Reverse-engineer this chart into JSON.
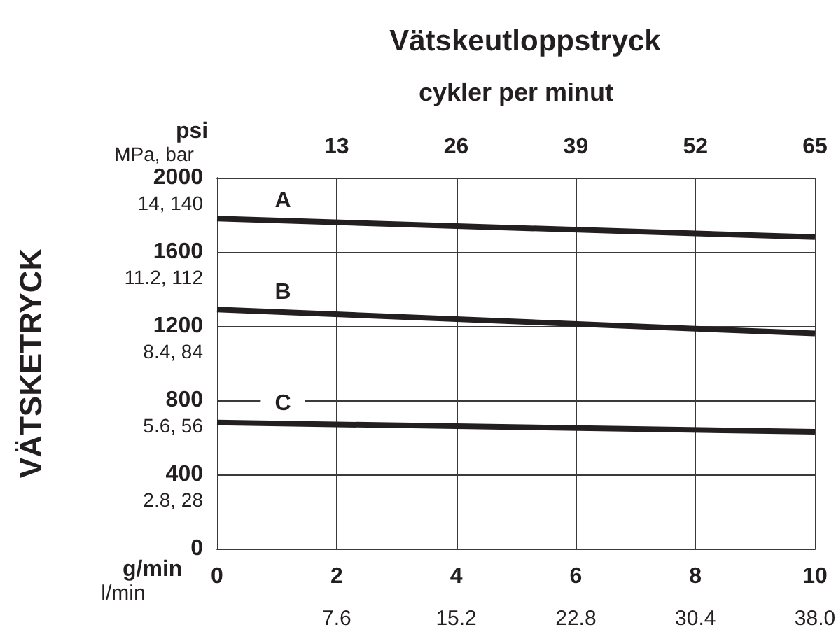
{
  "chart_data": {
    "type": "line",
    "title": "Vätskeutloppstryck",
    "xlabel": "g/min",
    "x2label": "cykler per minut",
    "ylabel": "VÄTSKETRYCK",
    "annotations": [
      "psi",
      "MPa, bar",
      "14, 140",
      "11.2, 112",
      "8.4, 84",
      "5.6, 56",
      "2.8, 28",
      "l/min",
      "7.6",
      "15.2",
      "22.8",
      "30.4",
      "38.0"
    ],
    "x": [
      0,
      10
    ],
    "series": [
      {
        "name": "A",
        "color": "#231f20",
        "values": [
          1780,
          1680
        ]
      },
      {
        "name": "B",
        "color": "#231f20",
        "values": [
          1290,
          1160
        ]
      },
      {
        "name": "C",
        "color": "#231f20",
        "values": [
          680,
          630
        ]
      }
    ],
    "xlim": [
      0,
      10
    ],
    "xticks": [
      0,
      2,
      4,
      6,
      8,
      10
    ],
    "x2lim": [
      0,
      65
    ],
    "x2ticks": [
      13,
      26,
      39,
      52,
      65
    ],
    "ylim": [
      0,
      2000
    ],
    "yticks": [
      0,
      400,
      800,
      1200,
      1600,
      2000
    ],
    "grid": true,
    "legend": false,
    "marker": "none",
    "line_style": "solid"
  }
}
